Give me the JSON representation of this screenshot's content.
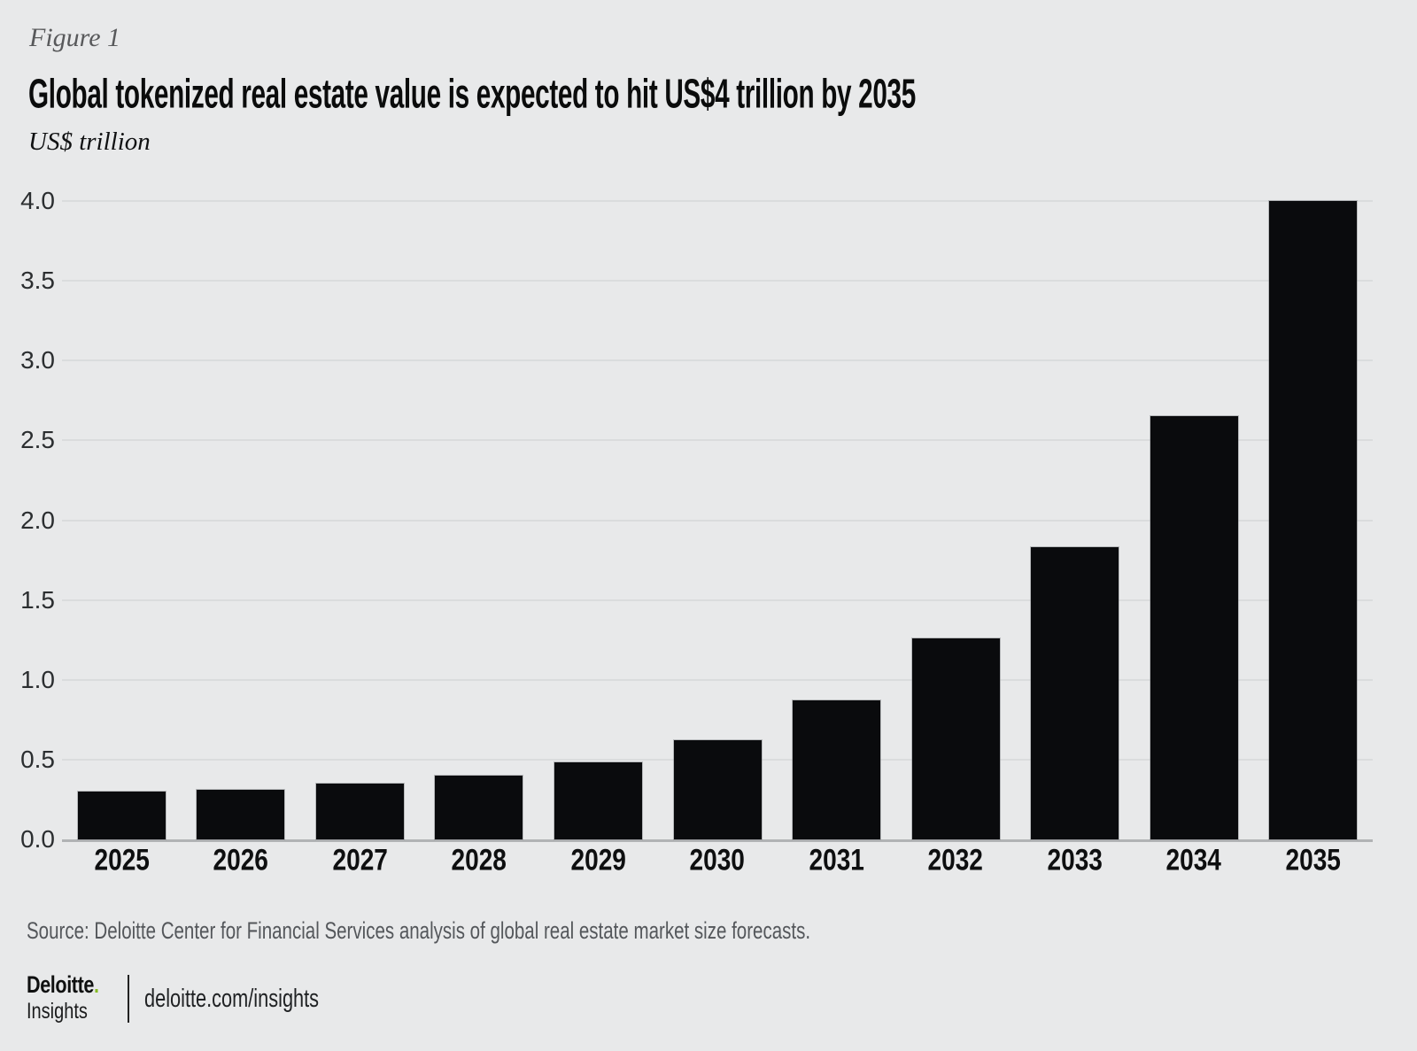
{
  "figure_label": "Figure 1",
  "title": "Global tokenized real estate value is expected to hit US$4 trillion by 2035",
  "unit_label": "US$ trillion",
  "source": "Source: Deloitte Center for Financial Services analysis of global real estate market size forecasts.",
  "footer": {
    "brand": "Deloitte",
    "brand_dot": ".",
    "brand_sub": "Insights",
    "url": "deloitte.com/insights"
  },
  "colors": {
    "background": "#e8e9ea",
    "bar": "#0a0b0d",
    "gridline": "#dadcdd",
    "axis": "#b1b3b5",
    "brand_green": "#86bc25",
    "muted_text": "#58595b"
  },
  "chart_data": {
    "type": "bar",
    "categories": [
      "2025",
      "2026",
      "2027",
      "2028",
      "2029",
      "2030",
      "2031",
      "2032",
      "2033",
      "2034",
      "2035"
    ],
    "values": [
      0.3,
      0.31,
      0.35,
      0.4,
      0.48,
      0.62,
      0.87,
      1.26,
      1.83,
      2.65,
      4.0
    ],
    "title": "Global tokenized real estate value is expected to hit US$4 trillion by 2035",
    "xlabel": "",
    "ylabel": "US$ trillion",
    "ylim": [
      0,
      4.0
    ],
    "yticks": [
      "0.0",
      "0.5",
      "1.0",
      "1.5",
      "2.0",
      "2.5",
      "3.0",
      "3.5",
      "4.0"
    ],
    "grid": true,
    "legend": false,
    "bar_color": "#0a0b0d"
  }
}
